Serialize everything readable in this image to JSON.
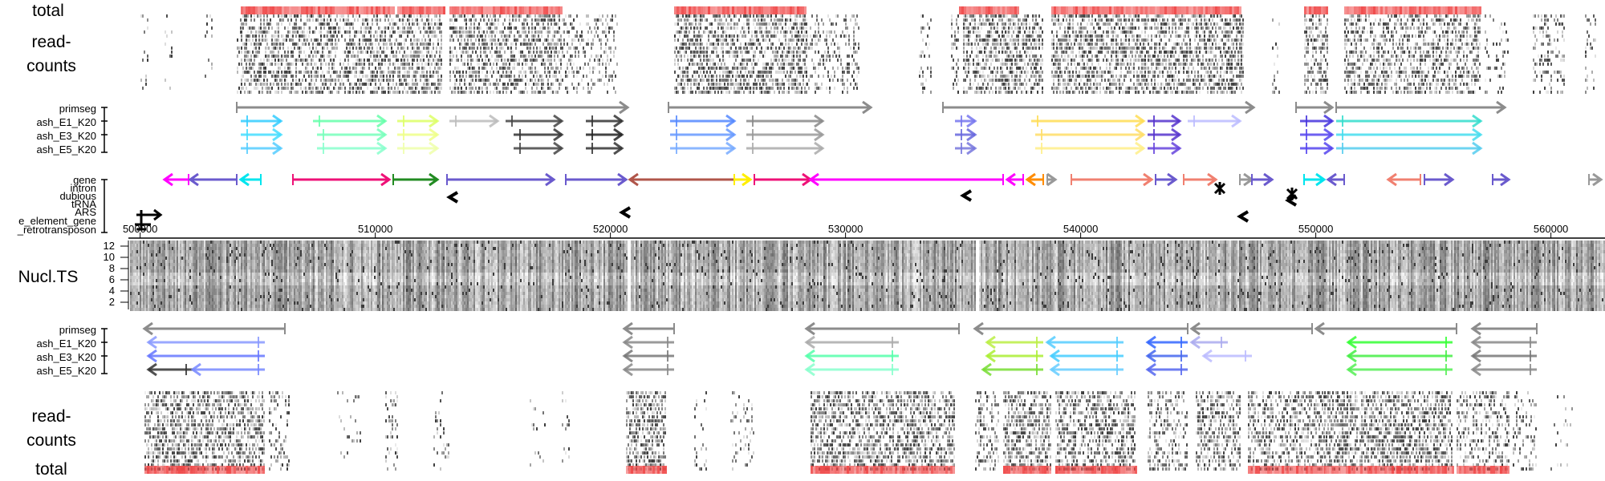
{
  "top": {
    "total_label": "total",
    "readcounts_label_1": "read-",
    "readcounts_label_2": "counts",
    "track_labels": [
      "primseg",
      "ash_E1_K20",
      "ash_E3_K20",
      "ash_E5_K20"
    ]
  },
  "annotation": {
    "type_labels": [
      "gene",
      "intron",
      "dubious",
      "tRNA",
      "ARS",
      "e_element_gene",
      "_retrotransposon"
    ]
  },
  "axis": {
    "ticks": [
      500000,
      510000,
      520000,
      530000,
      540000,
      550000,
      560000
    ],
    "tick_labels": [
      "500000",
      "510000",
      "520000",
      "530000",
      "540000",
      "550000",
      "560000"
    ],
    "range": [
      499500,
      562300
    ]
  },
  "nucl": {
    "label": "Nucl.TS",
    "yticks": [
      "12",
      "10",
      "8",
      "6",
      "4",
      "2"
    ]
  },
  "bottom": {
    "track_labels": [
      "primseg",
      "ash_E1_K20",
      "ash_E3_K20",
      "ash_E5_K20"
    ],
    "readcounts_label_1": "read-",
    "readcounts_label_2": "counts",
    "total_label": "total"
  },
  "colors": {
    "primseg": "#8c8c8c",
    "heat_total": "#ef4444",
    "gene_magenta": "#ff00ff",
    "gene_purple": "#6a5acd",
    "gene_pink": "#ee1177",
    "gene_green": "#228b22",
    "gene_cyan": "#00e5ee",
    "gene_salmon": "#f08070",
    "gene_orange": "#ff8c00",
    "gene_yellow": "#ffee00",
    "gene_brown": "#b0554a"
  }
}
